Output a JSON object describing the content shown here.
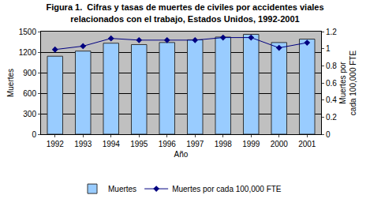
{
  "chart_data": {
    "type": "bar",
    "title": [
      "Figura 1.  Cifras y tasas de muertes de civiles por accidentes viales",
      "relacionados con el trabajo, Estados Unidos, 1992-2001"
    ],
    "x_label": "Año",
    "y_label": "Muertes",
    "y2_label": "Muertes por cada 100,000 FTE",
    "categories": [
      "1992",
      "1993",
      "1994",
      "1995",
      "1996",
      "1997",
      "1998",
      "1999",
      "2000",
      "2001"
    ],
    "series": [
      {
        "name": "Muertes",
        "type": "bar",
        "color": "#99ccff",
        "values": [
          1140,
          1215,
          1330,
          1310,
          1340,
          1380,
          1420,
          1460,
          1340,
          1390
        ]
      },
      {
        "name": "Muertes por cada 100,000 FTE",
        "type": "line",
        "axis": "y2",
        "color": "#000080",
        "marker": "diamond",
        "line_style": "solid",
        "values": [
          0.99,
          1.03,
          1.12,
          1.1,
          1.1,
          1.1,
          1.13,
          1.13,
          1.01,
          1.07
        ]
      }
    ],
    "ylim": [
      0,
      1500
    ],
    "yticks": [
      0,
      300,
      600,
      900,
      1200,
      1500
    ],
    "y2lim": [
      0,
      1.2
    ],
    "y2ticks": [
      0,
      0.2,
      0.4,
      0.6,
      0.8,
      1,
      1.2
    ],
    "grid": true,
    "legend": "bottom"
  }
}
